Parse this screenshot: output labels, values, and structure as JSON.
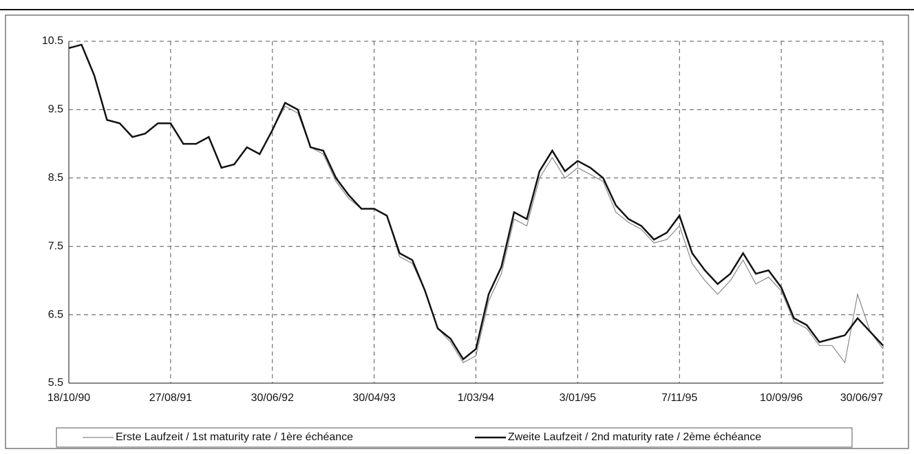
{
  "chart_data": {
    "type": "line",
    "categories": [
      "18/10/90",
      null,
      null,
      null,
      null,
      null,
      null,
      null,
      "27/08/91",
      null,
      null,
      null,
      null,
      null,
      null,
      null,
      "30/06/92",
      null,
      null,
      null,
      null,
      null,
      null,
      null,
      "30/04/93",
      null,
      null,
      null,
      null,
      null,
      null,
      null,
      "1/03/94",
      null,
      null,
      null,
      null,
      null,
      null,
      null,
      "3/01/95",
      null,
      null,
      null,
      null,
      null,
      null,
      null,
      "7/11/95",
      null,
      null,
      null,
      null,
      null,
      null,
      null,
      "10/09/96",
      null,
      null,
      null,
      null,
      null,
      null,
      null,
      "30/06/97"
    ],
    "series": [
      {
        "name": "Erste Laufzeit / 1st maturity rate / 1ère échéance",
        "color": "#888888",
        "values": [
          10.4,
          10.45,
          10.0,
          9.35,
          9.3,
          9.1,
          9.15,
          9.3,
          9.3,
          9.0,
          9.0,
          9.1,
          8.65,
          8.7,
          8.95,
          8.85,
          9.2,
          9.55,
          9.45,
          8.95,
          8.85,
          8.45,
          8.2,
          8.05,
          8.05,
          7.95,
          7.35,
          7.25,
          6.85,
          6.3,
          6.1,
          5.8,
          5.9,
          6.7,
          7.1,
          7.9,
          7.8,
          8.5,
          8.8,
          8.5,
          8.65,
          8.55,
          8.45,
          8.0,
          7.85,
          7.75,
          7.55,
          7.6,
          7.8,
          7.25,
          7.0,
          6.8,
          7.0,
          7.3,
          6.95,
          7.05,
          6.85,
          6.4,
          6.3,
          6.05,
          6.05,
          5.8,
          6.8,
          6.25,
          6.0
        ]
      },
      {
        "name": "Zweite Laufzeit / 2nd maturity rate / 2ème échéance",
        "color": "#111111",
        "values": [
          10.4,
          10.45,
          10.0,
          9.35,
          9.3,
          9.1,
          9.15,
          9.3,
          9.3,
          9.0,
          9.0,
          9.1,
          8.65,
          8.7,
          8.95,
          8.85,
          9.2,
          9.6,
          9.5,
          8.95,
          8.9,
          8.5,
          8.25,
          8.05,
          8.05,
          7.95,
          7.4,
          7.3,
          6.85,
          6.3,
          6.15,
          5.85,
          6.0,
          6.8,
          7.2,
          8.0,
          7.9,
          8.6,
          8.9,
          8.6,
          8.75,
          8.65,
          8.5,
          8.1,
          7.9,
          7.8,
          7.6,
          7.7,
          7.95,
          7.4,
          7.15,
          6.95,
          7.1,
          7.4,
          7.1,
          7.15,
          6.9,
          6.45,
          6.35,
          6.1,
          6.15,
          6.2,
          6.45,
          6.25,
          6.05
        ]
      }
    ],
    "ylim": [
      5.5,
      10.5
    ],
    "yticks": [
      5.5,
      6.5,
      7.5,
      8.5,
      9.5,
      10.5
    ],
    "grid": true,
    "legend": "bottom"
  }
}
